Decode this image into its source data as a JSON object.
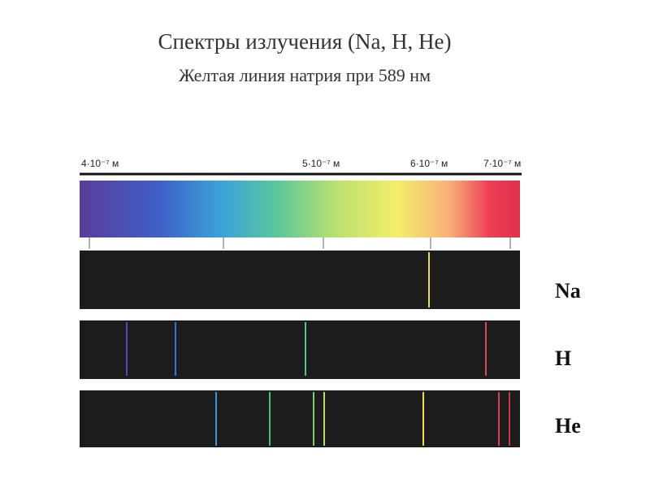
{
  "header": {
    "title": "Спектры излучения (Na, H, He)",
    "subtitle": "Желтая линия натрия при 589 нм"
  },
  "scale": {
    "labels": [
      "4·10⁻⁷ м",
      "5·10⁻⁷ м",
      "6·10⁻⁷ м",
      "7·10⁻⁷ м"
    ]
  },
  "spectra": [
    {
      "label": "Na"
    },
    {
      "label": "H"
    },
    {
      "label": "He"
    }
  ]
}
